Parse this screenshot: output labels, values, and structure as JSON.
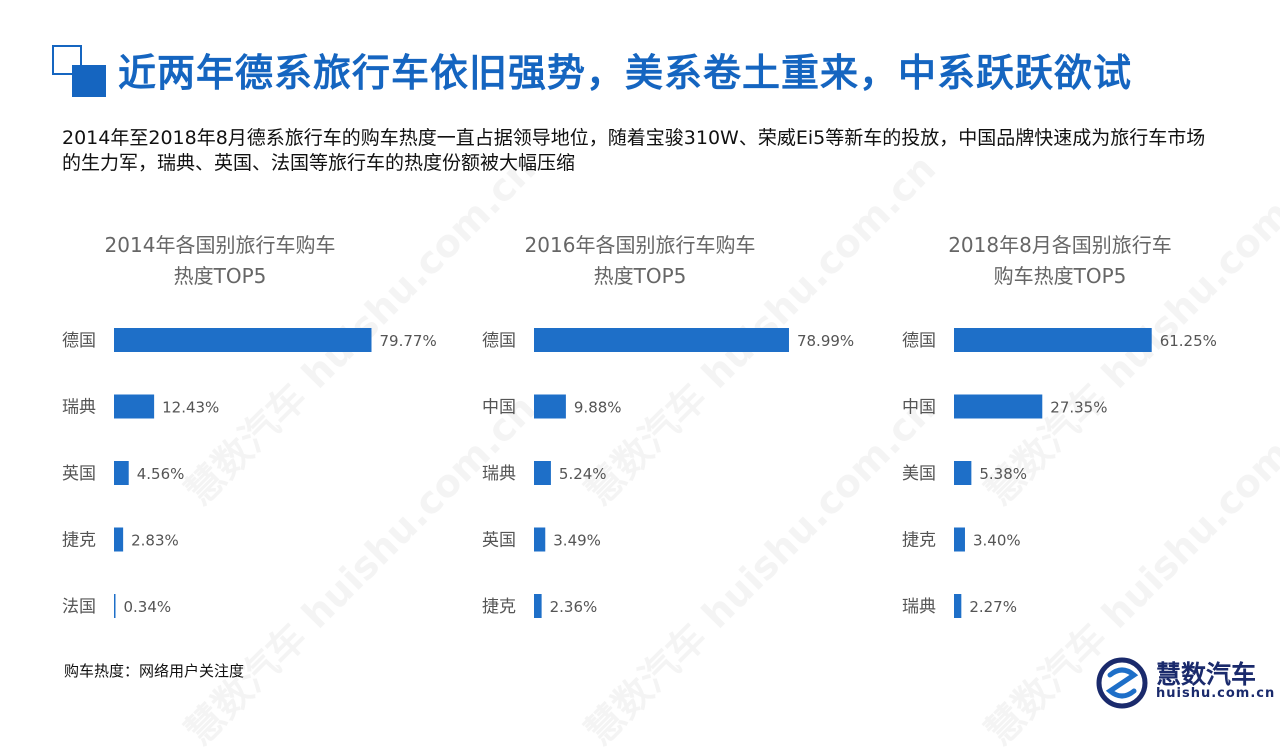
{
  "header": {
    "title": "近两年德系旅行车依旧强势，美系卷土重来，中系跃跃欲试",
    "description": "2014年至2018年8月德系旅行车的购车热度一直占据领导地位，随着宝骏310W、荣威Ei5等新车的投放，中国品牌快速成为旅行车市场的生力军，瑞典、英国、法国等旅行车的热度份额被大幅压缩"
  },
  "footnote": "购车热度：网络用户关注度",
  "logo": {
    "name": "慧数汽车",
    "url": "huishu.com.cn",
    "color": "#1a2a6c"
  },
  "watermark": {
    "brand": "慧数汽车",
    "url": "huishu.com.cn"
  },
  "colors": {
    "accent": "#1565c0",
    "bar": "#1e6fc8"
  },
  "chart_data": [
    {
      "type": "bar",
      "orientation": "horizontal",
      "title": "2014年各国别旅行车购车\n热度TOP5",
      "categories": [
        "德国",
        "瑞典",
        "英国",
        "捷克",
        "法国"
      ],
      "values": [
        79.77,
        12.43,
        4.56,
        2.83,
        0.34
      ],
      "labels": [
        "79.77%",
        "12.43%",
        "4.56%",
        "2.83%",
        "0.34%"
      ],
      "unit": "%"
    },
    {
      "type": "bar",
      "orientation": "horizontal",
      "title": "2016年各国别旅行车购车\n热度TOP5",
      "categories": [
        "德国",
        "中国",
        "瑞典",
        "英国",
        "捷克"
      ],
      "values": [
        78.99,
        9.88,
        5.24,
        3.49,
        2.36
      ],
      "labels": [
        "78.99%",
        "9.88%",
        "5.24%",
        "3.49%",
        "2.36%"
      ],
      "unit": "%"
    },
    {
      "type": "bar",
      "orientation": "horizontal",
      "title": "2018年8月各国别旅行车\n购车热度TOP5",
      "categories": [
        "德国",
        "中国",
        "美国",
        "捷克",
        "瑞典"
      ],
      "values": [
        61.25,
        27.35,
        5.38,
        3.4,
        2.27
      ],
      "labels": [
        "61.25%",
        "27.35%",
        "5.38%",
        "3.40%",
        "2.27%"
      ],
      "unit": "%"
    }
  ]
}
